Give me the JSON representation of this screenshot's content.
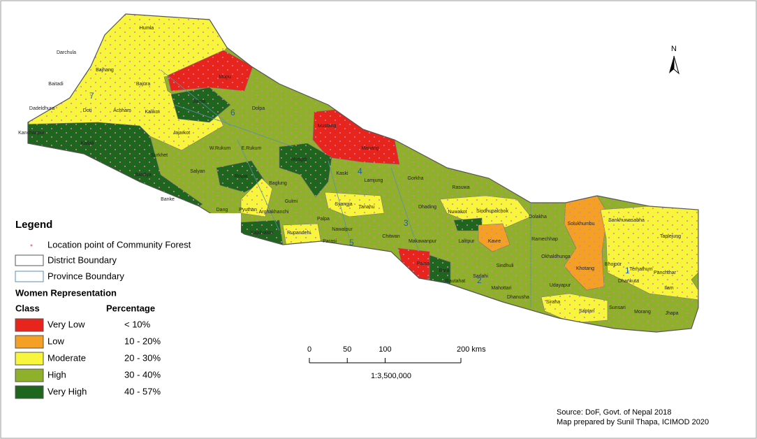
{
  "legend": {
    "title": "Legend",
    "items": [
      "Location point of Community Forest",
      "District Boundary",
      "Province Boundary"
    ],
    "subtitle": "Women Representation",
    "class_header": "Class",
    "percentage_header": "Percentage",
    "classes": [
      {
        "name": "Very Low",
        "range": "< 10%",
        "color": "#e8251c"
      },
      {
        "name": "Low",
        "range": "10 - 20%",
        "color": "#f4a024"
      },
      {
        "name": "Moderate",
        "range": "20 - 30%",
        "color": "#f7f53c"
      },
      {
        "name": "High",
        "range": "30 - 40%",
        "color": "#8fb02b"
      },
      {
        "name": "Very High",
        "range": "40 - 57%",
        "color": "#1e651d"
      }
    ]
  },
  "districts": [
    "Humla",
    "Darchula",
    "Bajhang",
    "Bajura",
    "Baitadi",
    "Mugu",
    "Doti",
    "Dadeldhura",
    "Achham",
    "Kalikot",
    "Jumla",
    "Dolpa",
    "Jajarkot",
    "Mustang",
    "Manang",
    "W.Rukum",
    "E.Rukum",
    "Myagdi",
    "Kaski",
    "Lamjung",
    "Gorkha",
    "Rasuwa",
    "Salyan",
    "Baglung",
    "Rolpa",
    "Pyuthan",
    "Dang",
    "Gulmi",
    "Syangja",
    "Tanahu",
    "Arghakhanchi",
    "Palpa",
    "Dhading",
    "Nuwakot",
    "Sindhupalchok",
    "Dolakha",
    "Solukhumbu",
    "Sankhuwasabha",
    "Taplejung",
    "Nawalpur",
    "Rupandehi",
    "Parasi",
    "Chitwan",
    "Makawanpur",
    "Kavre",
    "Lalitpur",
    "Ramechhap",
    "Okhaldhunga",
    "Khotang",
    "Bhojpur",
    "Terhathum",
    "Panchthar",
    "Dhankuta",
    "Ilam",
    "Sindhuli",
    "Udayapur",
    "Parsa",
    "Bara",
    "Rautahat",
    "Sarlahi",
    "Mahottari",
    "Dhanusha",
    "Siraha",
    "Saptari",
    "Sunsari",
    "Morang",
    "Jhapa",
    "Kanchanpur",
    "Kailali",
    "Bardiya",
    "Banke",
    "Surkhet",
    "Kapilvastu"
  ],
  "provinces": [
    "1",
    "2",
    "3",
    "4",
    "5",
    "6",
    "7"
  ],
  "north": "N",
  "scale": {
    "ticks": [
      0,
      50,
      100,
      {
        "value": 200,
        "label": "200 kms"
      }
    ],
    "ratio": "1:3,500,000"
  },
  "source": "Source: DoF, Govt. of Nepal 2018",
  "credit": "Map prepared by Sunil Thapa, ICIMOD 2020"
}
